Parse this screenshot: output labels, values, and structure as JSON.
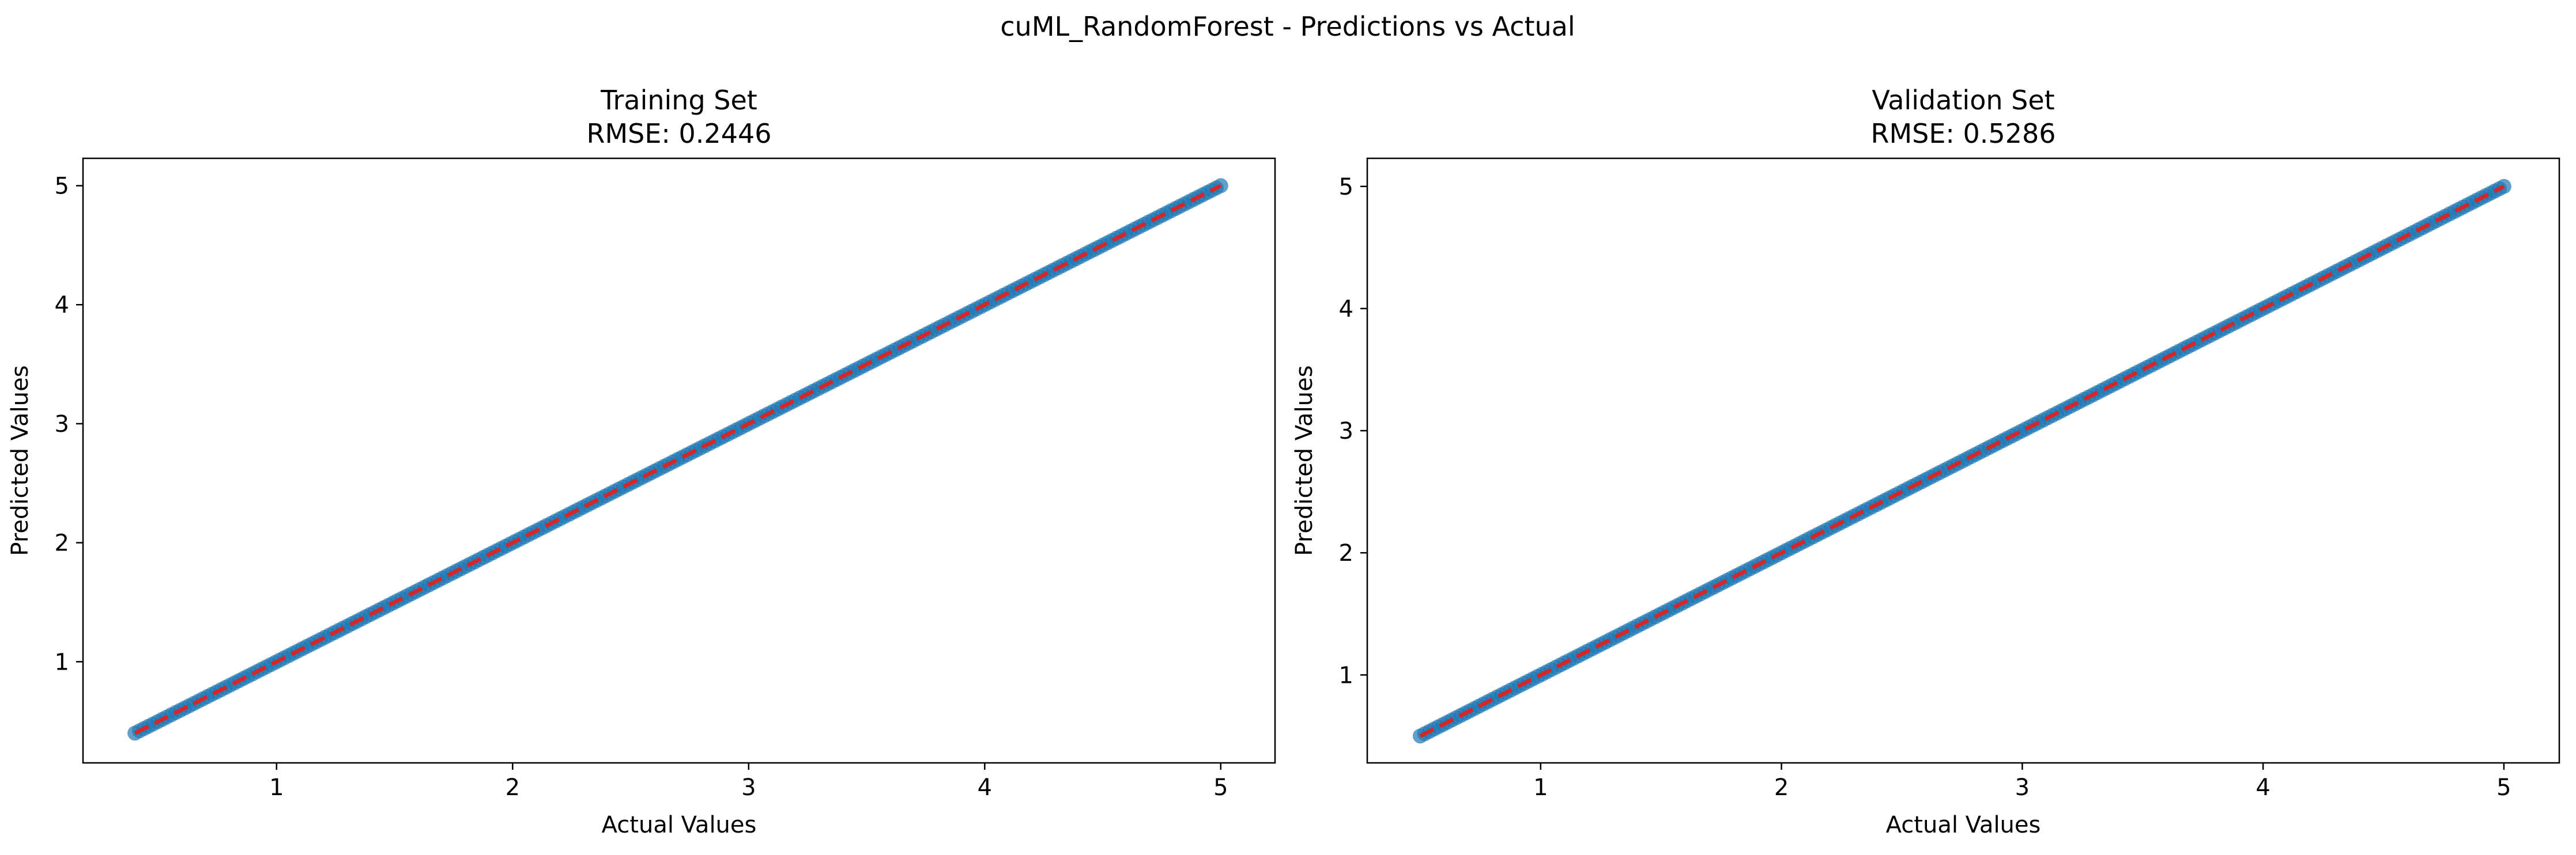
{
  "figure": {
    "suptitle": "cuML_RandomForest - Predictions vs Actual"
  },
  "chart_data": [
    {
      "type": "scatter",
      "title": "Training Set",
      "subtitle": "RMSE: 0.2446",
      "xlabel": "Actual Values",
      "ylabel": "Predicted Values",
      "xlim": [
        0.18,
        5.23
      ],
      "ylim": [
        0.15,
        5.23
      ],
      "xticks": [
        1,
        2,
        3,
        4,
        5
      ],
      "xtick_labels": [
        "1",
        "2",
        "3",
        "4",
        "5"
      ],
      "yticks": [
        1,
        2,
        3,
        4,
        5
      ],
      "ytick_labels": [
        "1",
        "2",
        "3",
        "4",
        "5"
      ],
      "grid": false,
      "point_color": "#1f77b4",
      "series": [
        {
          "name": "predictions",
          "x_range": [
            0.4,
            5.0
          ],
          "y_range": [
            0.4,
            5.0
          ],
          "relation": "y = x"
        }
      ],
      "reference_line": {
        "name": "perfect prediction",
        "x": [
          0.4,
          5.0
        ],
        "y": [
          0.4,
          5.0
        ],
        "color": "#d62728",
        "style": "dashed"
      }
    },
    {
      "type": "scatter",
      "title": "Validation Set",
      "subtitle": "RMSE: 0.5286",
      "xlabel": "Actual Values",
      "ylabel": "Predicted Values",
      "xlim": [
        0.28,
        5.23
      ],
      "ylim": [
        0.28,
        5.23
      ],
      "xticks": [
        1,
        2,
        3,
        4,
        5
      ],
      "xtick_labels": [
        "1",
        "2",
        "3",
        "4",
        "5"
      ],
      "yticks": [
        1,
        2,
        3,
        4,
        5
      ],
      "ytick_labels": [
        "1",
        "2",
        "3",
        "4",
        "5"
      ],
      "grid": false,
      "point_color": "#1f77b4",
      "series": [
        {
          "name": "predictions",
          "x_range": [
            0.5,
            5.0
          ],
          "y_range": [
            0.5,
            5.0
          ],
          "relation": "y = x"
        }
      ],
      "reference_line": {
        "name": "perfect prediction",
        "x": [
          0.5,
          5.0
        ],
        "y": [
          0.5,
          5.0
        ],
        "color": "#d62728",
        "style": "dashed"
      }
    }
  ]
}
